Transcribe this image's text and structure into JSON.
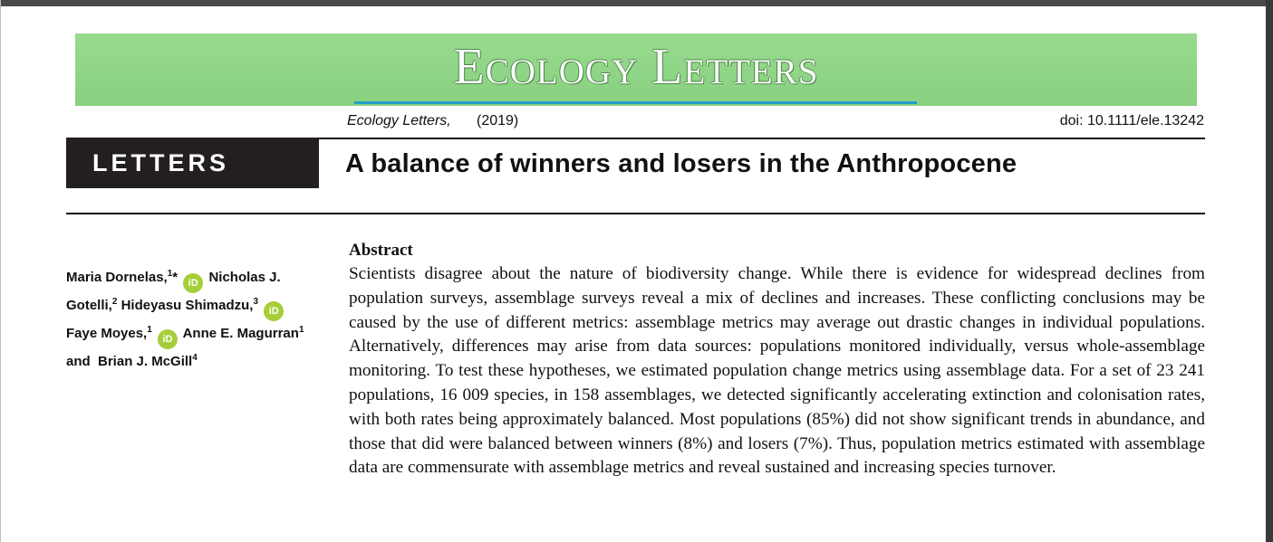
{
  "banner": {
    "title": "Ecology Letters"
  },
  "meta": {
    "journal": "Ecology Letters,",
    "year": "(2019)",
    "doi": "doi: 10.1111/ele.13242"
  },
  "section": {
    "label": "LETTERS"
  },
  "article": {
    "title": "A balance of winners and losers in the Anthropocene"
  },
  "authors": [
    {
      "name": "Maria Dornelas,",
      "aff": "1",
      "extra": "*",
      "orcid": true
    },
    {
      "name": "Nicholas J. Gotelli,",
      "aff": "2",
      "orcid": false
    },
    {
      "name": "Hideyasu Shimadzu,",
      "aff": "3",
      "orcid": true
    },
    {
      "name": "Faye Moyes,",
      "aff": "1",
      "orcid": true
    },
    {
      "name": "Anne E. Magurran",
      "aff": "1",
      "orcid": false
    },
    {
      "name": "Brian J. McGill",
      "aff": "4",
      "orcid": false
    }
  ],
  "authors_connector": "and",
  "orcid_glyph": "iD",
  "colors": {
    "banner": "#8fd487",
    "underline": "#1f9ec7",
    "section_box": "#231f20",
    "orcid": "#a6ce39"
  },
  "abstract": {
    "heading": "Abstract",
    "body": "Scientists disagree about the nature of biodiversity change. While there is evidence for widespread declines from population surveys, assemblage surveys reveal a mix of declines and increases. These conflicting conclusions may be caused by the use of different metrics: assemblage metrics may average out drastic changes in individual populations. Alternatively, differences may arise from data sources: populations monitored individually, versus whole-assemblage monitoring. To test these hypotheses, we estimated population change metrics using assemblage data. For a set of 23 241 populations, 16 009 species, in 158 assemblages, we detected significantly accelerating extinction and colonisation rates, with both rates being approximately balanced. Most populations (85%) did not show significant trends in abundance, and those that did were balanced between winners (8%) and losers (7%). Thus, population metrics estimated with assemblage data are com­mensurate with assemblage metrics and reveal sustained and increasing species turnover."
  }
}
